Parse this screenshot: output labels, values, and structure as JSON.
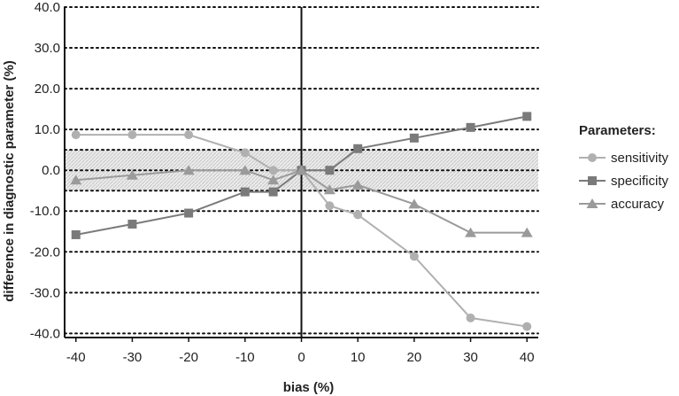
{
  "chart_data": {
    "type": "line",
    "xlabel": "bias (%)",
    "ylabel": "difference in diagnostic parameter (%)",
    "xlim": [
      -42,
      42
    ],
    "ylim": [
      -41,
      40
    ],
    "xticks": [
      -40,
      -30,
      -20,
      -10,
      0,
      10,
      20,
      30,
      40
    ],
    "xtick_labels": [
      "-40",
      "-30",
      "-20",
      "-10",
      "0",
      "10",
      "20",
      "30",
      "40"
    ],
    "yticks": [
      40,
      30,
      20,
      10,
      0,
      -10,
      -20,
      -30,
      -40
    ],
    "ytick_labels": [
      "40.0",
      "30.0",
      "20.0",
      "10.0",
      "0.0",
      "-10.0",
      "-20.0",
      "-30.0",
      "-40.0"
    ],
    "grid": "horizontal dotted",
    "band": {
      "y_from": -5,
      "y_to": 5,
      "style": "light gray hatched"
    },
    "x": [
      -40,
      -30,
      -20,
      -10,
      -5,
      0,
      5,
      10,
      20,
      30,
      40
    ],
    "series": [
      {
        "name": "sensitivity",
        "marker": "circle",
        "color": "#b0b0b0",
        "values": [
          8.7,
          8.7,
          8.7,
          4.3,
          0,
          0,
          -8.7,
          -10.9,
          -21.1,
          -36.2,
          -38.3
        ]
      },
      {
        "name": "specificity",
        "marker": "square",
        "color": "#7a7a7a",
        "values": [
          -15.8,
          -13.2,
          -10.5,
          -5.3,
          -5.3,
          0,
          0,
          5.3,
          7.9,
          10.5,
          13.2
        ]
      },
      {
        "name": "accuracy",
        "marker": "triangle",
        "color": "#9a9a9a",
        "values": [
          -2.4,
          -1.2,
          0,
          0,
          -2.4,
          0,
          -4.8,
          -3.6,
          -8.3,
          -15.3,
          -15.3
        ]
      }
    ],
    "legend": {
      "title": "Parameters:",
      "position": "right"
    }
  }
}
